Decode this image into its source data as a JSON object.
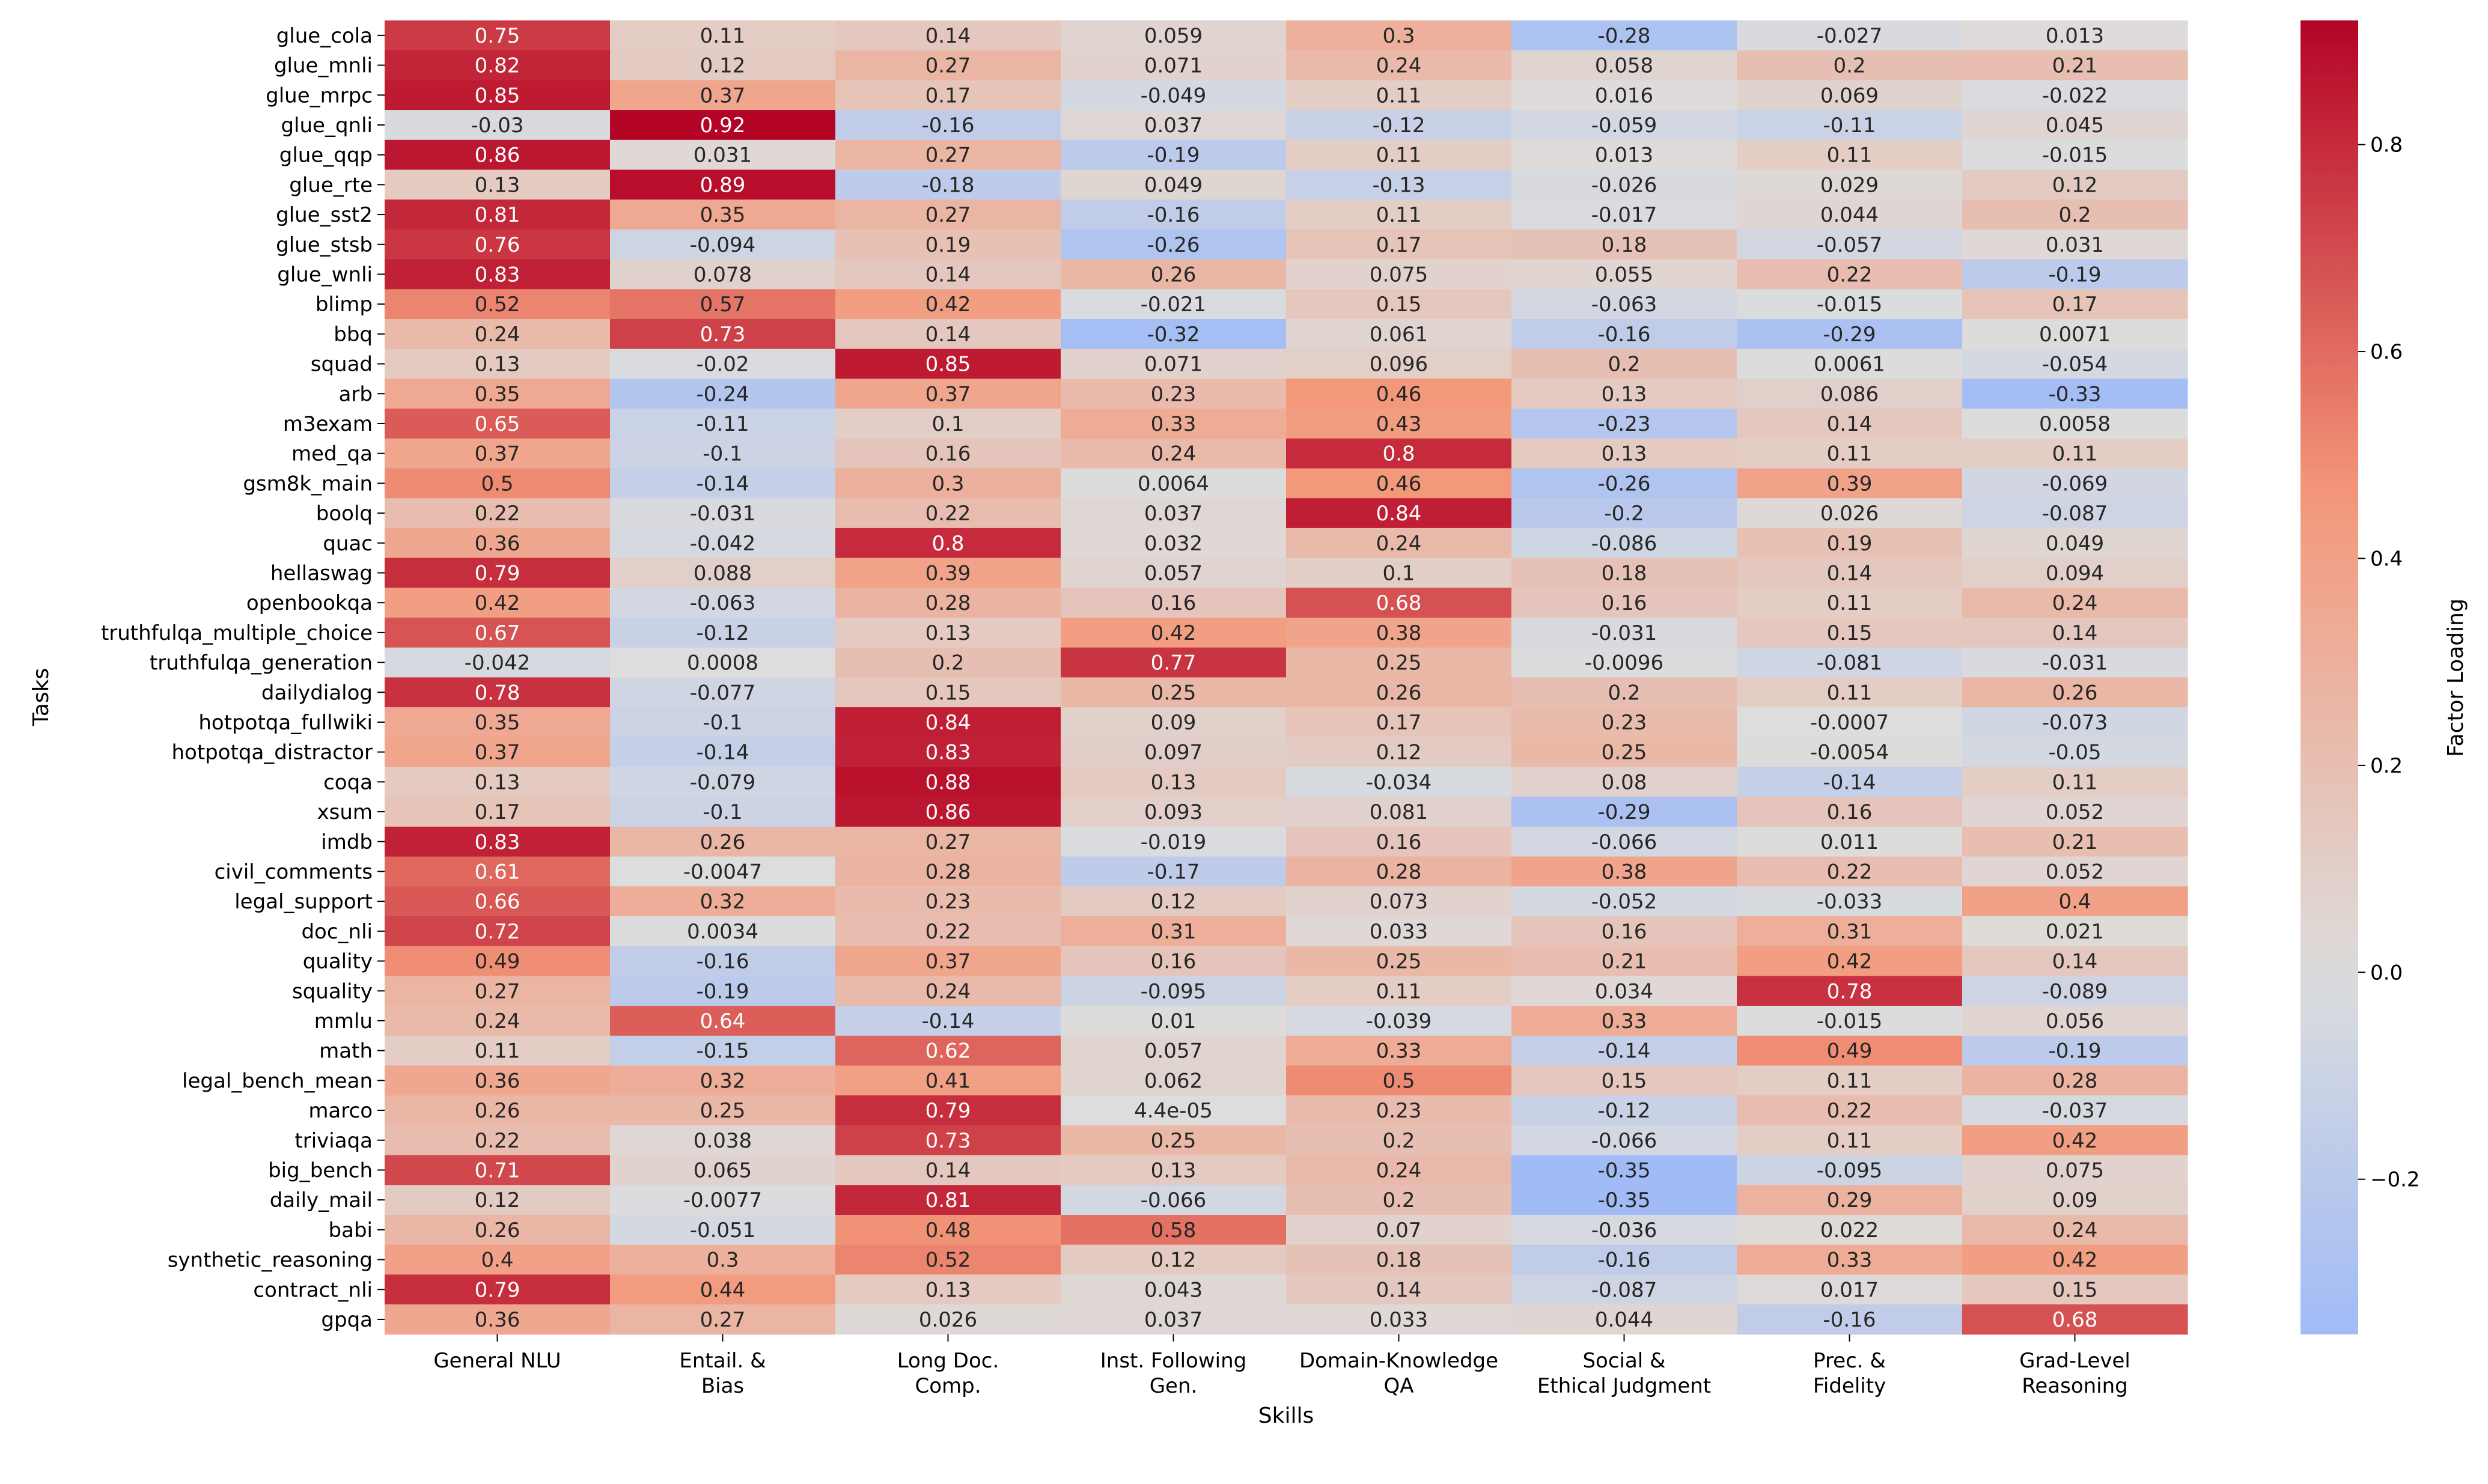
{
  "chart_data": {
    "type": "heatmap",
    "xlabel": "Skills",
    "ylabel": "Tasks",
    "colorbar_label": "Factor Loading",
    "colormap": "coolwarm",
    "value_range": [
      -0.35,
      0.92
    ],
    "colorbar_ticks": [
      "0.8",
      "0.6",
      "0.4",
      "0.2",
      "0.0",
      "−0.2"
    ],
    "columns": [
      [
        "General NLU"
      ],
      [
        "Entail. &",
        "Bias"
      ],
      [
        "Long Doc.",
        "Comp."
      ],
      [
        "Inst. Following",
        "Gen."
      ],
      [
        "Domain-Knowledge",
        "QA"
      ],
      [
        "Social &",
        "Ethical Judgment"
      ],
      [
        "Prec. &",
        "Fidelity"
      ],
      [
        "Grad-Level",
        "Reasoning"
      ]
    ],
    "rows": [
      {
        "task": "glue_cola",
        "values": [
          "0.75",
          "0.11",
          "0.14",
          "0.059",
          "0.3",
          "-0.28",
          "-0.027",
          "0.013"
        ]
      },
      {
        "task": "glue_mnli",
        "values": [
          "0.82",
          "0.12",
          "0.27",
          "0.071",
          "0.24",
          "0.058",
          "0.2",
          "0.21"
        ]
      },
      {
        "task": "glue_mrpc",
        "values": [
          "0.85",
          "0.37",
          "0.17",
          "-0.049",
          "0.11",
          "0.016",
          "0.069",
          "-0.022"
        ]
      },
      {
        "task": "glue_qnli",
        "values": [
          "-0.03",
          "0.92",
          "-0.16",
          "0.037",
          "-0.12",
          "-0.059",
          "-0.11",
          "0.045"
        ]
      },
      {
        "task": "glue_qqp",
        "values": [
          "0.86",
          "0.031",
          "0.27",
          "-0.19",
          "0.11",
          "0.013",
          "0.11",
          "-0.015"
        ]
      },
      {
        "task": "glue_rte",
        "values": [
          "0.13",
          "0.89",
          "-0.18",
          "0.049",
          "-0.13",
          "-0.026",
          "0.029",
          "0.12"
        ]
      },
      {
        "task": "glue_sst2",
        "values": [
          "0.81",
          "0.35",
          "0.27",
          "-0.16",
          "0.11",
          "-0.017",
          "0.044",
          "0.2"
        ]
      },
      {
        "task": "glue_stsb",
        "values": [
          "0.76",
          "-0.094",
          "0.19",
          "-0.26",
          "0.17",
          "0.18",
          "-0.057",
          "0.031"
        ]
      },
      {
        "task": "glue_wnli",
        "values": [
          "0.83",
          "0.078",
          "0.14",
          "0.26",
          "0.075",
          "0.055",
          "0.22",
          "-0.19"
        ]
      },
      {
        "task": "blimp",
        "values": [
          "0.52",
          "0.57",
          "0.42",
          "-0.021",
          "0.15",
          "-0.063",
          "-0.015",
          "0.17"
        ]
      },
      {
        "task": "bbq",
        "values": [
          "0.24",
          "0.73",
          "0.14",
          "-0.32",
          "0.061",
          "-0.16",
          "-0.29",
          "0.0071"
        ]
      },
      {
        "task": "squad",
        "values": [
          "0.13",
          "-0.02",
          "0.85",
          "0.071",
          "0.096",
          "0.2",
          "0.0061",
          "-0.054"
        ]
      },
      {
        "task": "arb",
        "values": [
          "0.35",
          "-0.24",
          "0.37",
          "0.23",
          "0.46",
          "0.13",
          "0.086",
          "-0.33"
        ]
      },
      {
        "task": "m3exam",
        "values": [
          "0.65",
          "-0.11",
          "0.1",
          "0.33",
          "0.43",
          "-0.23",
          "0.14",
          "0.0058"
        ]
      },
      {
        "task": "med_qa",
        "values": [
          "0.37",
          "-0.1",
          "0.16",
          "0.24",
          "0.8",
          "0.13",
          "0.11",
          "0.11"
        ]
      },
      {
        "task": "gsm8k_main",
        "values": [
          "0.5",
          "-0.14",
          "0.3",
          "0.0064",
          "0.46",
          "-0.26",
          "0.39",
          "-0.069"
        ]
      },
      {
        "task": "boolq",
        "values": [
          "0.22",
          "-0.031",
          "0.22",
          "0.037",
          "0.84",
          "-0.2",
          "0.026",
          "-0.087"
        ]
      },
      {
        "task": "quac",
        "values": [
          "0.36",
          "-0.042",
          "0.8",
          "0.032",
          "0.24",
          "-0.086",
          "0.19",
          "0.049"
        ]
      },
      {
        "task": "hellaswag",
        "values": [
          "0.79",
          "0.088",
          "0.39",
          "0.057",
          "0.1",
          "0.18",
          "0.14",
          "0.094"
        ]
      },
      {
        "task": "openbookqa",
        "values": [
          "0.42",
          "-0.063",
          "0.28",
          "0.16",
          "0.68",
          "0.16",
          "0.11",
          "0.24"
        ]
      },
      {
        "task": "truthfulqa_multiple_choice",
        "values": [
          "0.67",
          "-0.12",
          "0.13",
          "0.42",
          "0.38",
          "-0.031",
          "0.15",
          "0.14"
        ]
      },
      {
        "task": "truthfulqa_generation",
        "values": [
          "-0.042",
          "0.0008",
          "0.2",
          "0.77",
          "0.25",
          "-0.0096",
          "-0.081",
          "-0.031"
        ]
      },
      {
        "task": "dailydialog",
        "values": [
          "0.78",
          "-0.077",
          "0.15",
          "0.25",
          "0.26",
          "0.2",
          "0.11",
          "0.26"
        ]
      },
      {
        "task": "hotpotqa_fullwiki",
        "values": [
          "0.35",
          "-0.1",
          "0.84",
          "0.09",
          "0.17",
          "0.23",
          "-0.0007",
          "-0.073"
        ]
      },
      {
        "task": "hotpotqa_distractor",
        "values": [
          "0.37",
          "-0.14",
          "0.83",
          "0.097",
          "0.12",
          "0.25",
          "-0.0054",
          "-0.05"
        ]
      },
      {
        "task": "coqa",
        "values": [
          "0.13",
          "-0.079",
          "0.88",
          "0.13",
          "-0.034",
          "0.08",
          "-0.14",
          "0.11"
        ]
      },
      {
        "task": "xsum",
        "values": [
          "0.17",
          "-0.1",
          "0.86",
          "0.093",
          "0.081",
          "-0.29",
          "0.16",
          "0.052"
        ]
      },
      {
        "task": "imdb",
        "values": [
          "0.83",
          "0.26",
          "0.27",
          "-0.019",
          "0.16",
          "-0.066",
          "0.011",
          "0.21"
        ]
      },
      {
        "task": "civil_comments",
        "values": [
          "0.61",
          "-0.0047",
          "0.28",
          "-0.17",
          "0.28",
          "0.38",
          "0.22",
          "0.052"
        ]
      },
      {
        "task": "legal_support",
        "values": [
          "0.66",
          "0.32",
          "0.23",
          "0.12",
          "0.073",
          "-0.052",
          "-0.033",
          "0.4"
        ]
      },
      {
        "task": "doc_nli",
        "values": [
          "0.72",
          "0.0034",
          "0.22",
          "0.31",
          "0.033",
          "0.16",
          "0.31",
          "0.021"
        ]
      },
      {
        "task": "quality",
        "values": [
          "0.49",
          "-0.16",
          "0.37",
          "0.16",
          "0.25",
          "0.21",
          "0.42",
          "0.14"
        ]
      },
      {
        "task": "squality",
        "values": [
          "0.27",
          "-0.19",
          "0.24",
          "-0.095",
          "0.11",
          "0.034",
          "0.78",
          "-0.089"
        ]
      },
      {
        "task": "mmlu",
        "values": [
          "0.24",
          "0.64",
          "-0.14",
          "0.01",
          "-0.039",
          "0.33",
          "-0.015",
          "0.056"
        ]
      },
      {
        "task": "math",
        "values": [
          "0.11",
          "-0.15",
          "0.62",
          "0.057",
          "0.33",
          "-0.14",
          "0.49",
          "-0.19"
        ]
      },
      {
        "task": "legal_bench_mean",
        "values": [
          "0.36",
          "0.32",
          "0.41",
          "0.062",
          "0.5",
          "0.15",
          "0.11",
          "0.28"
        ]
      },
      {
        "task": "marco",
        "values": [
          "0.26",
          "0.25",
          "0.79",
          "4.4e-05",
          "0.23",
          "-0.12",
          "0.22",
          "-0.037"
        ]
      },
      {
        "task": "triviaqa",
        "values": [
          "0.22",
          "0.038",
          "0.73",
          "0.25",
          "0.2",
          "-0.066",
          "0.11",
          "0.42"
        ]
      },
      {
        "task": "big_bench",
        "values": [
          "0.71",
          "0.065",
          "0.14",
          "0.13",
          "0.24",
          "-0.35",
          "-0.095",
          "0.075"
        ]
      },
      {
        "task": "daily_mail",
        "values": [
          "0.12",
          "-0.0077",
          "0.81",
          "-0.066",
          "0.2",
          "-0.35",
          "0.29",
          "0.09"
        ]
      },
      {
        "task": "babi",
        "values": [
          "0.26",
          "-0.051",
          "0.48",
          "0.58",
          "0.07",
          "-0.036",
          "0.022",
          "0.24"
        ]
      },
      {
        "task": "synthetic_reasoning",
        "values": [
          "0.4",
          "0.3",
          "0.52",
          "0.12",
          "0.18",
          "-0.16",
          "0.33",
          "0.42"
        ]
      },
      {
        "task": "contract_nli",
        "values": [
          "0.79",
          "0.44",
          "0.13",
          "0.043",
          "0.14",
          "-0.087",
          "0.017",
          "0.15"
        ]
      },
      {
        "task": "gpqa",
        "values": [
          "0.36",
          "0.27",
          "0.026",
          "0.037",
          "0.033",
          "0.044",
          "-0.16",
          "0.68"
        ]
      }
    ]
  }
}
